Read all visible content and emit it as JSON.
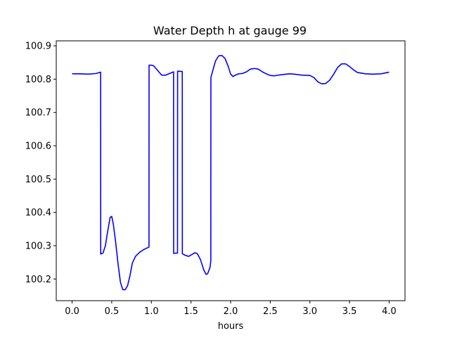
{
  "chart_data": {
    "type": "line",
    "title": "Water Depth h at gauge 99",
    "xlabel": "hours",
    "ylabel": "",
    "xlim": [
      -0.2,
      4.2
    ],
    "ylim": [
      100.135,
      100.915
    ],
    "grid": false,
    "x_ticks": [
      0.0,
      0.5,
      1.0,
      1.5,
      2.0,
      2.5,
      3.0,
      3.5,
      4.0
    ],
    "x_tick_labels": [
      "0.0",
      "0.5",
      "1.0",
      "1.5",
      "2.0",
      "2.5",
      "3.0",
      "3.5",
      "4.0"
    ],
    "y_ticks": [
      100.2,
      100.3,
      100.4,
      100.5,
      100.6,
      100.7,
      100.8,
      100.9
    ],
    "y_tick_labels": [
      "100.2",
      "100.3",
      "100.4",
      "100.5",
      "100.6",
      "100.7",
      "100.8",
      "100.9"
    ],
    "series": [
      {
        "name": "",
        "color": "#0000ff",
        "points": [
          [
            0.0,
            100.816
          ],
          [
            0.1,
            100.816
          ],
          [
            0.2,
            100.815
          ],
          [
            0.3,
            100.817
          ],
          [
            0.36,
            100.821
          ],
          [
            0.361,
            100.275
          ],
          [
            0.39,
            100.278
          ],
          [
            0.42,
            100.3
          ],
          [
            0.45,
            100.345
          ],
          [
            0.48,
            100.385
          ],
          [
            0.5,
            100.388
          ],
          [
            0.52,
            100.365
          ],
          [
            0.55,
            100.31
          ],
          [
            0.58,
            100.245
          ],
          [
            0.61,
            100.19
          ],
          [
            0.64,
            100.168
          ],
          [
            0.67,
            100.168
          ],
          [
            0.7,
            100.18
          ],
          [
            0.73,
            100.21
          ],
          [
            0.76,
            100.248
          ],
          [
            0.8,
            100.268
          ],
          [
            0.85,
            100.28
          ],
          [
            0.9,
            100.288
          ],
          [
            0.97,
            100.296
          ],
          [
            0.971,
            100.842
          ],
          [
            1.0,
            100.842
          ],
          [
            1.03,
            100.84
          ],
          [
            1.08,
            100.826
          ],
          [
            1.13,
            100.812
          ],
          [
            1.18,
            100.812
          ],
          [
            1.23,
            100.817
          ],
          [
            1.28,
            100.822
          ],
          [
            1.281,
            100.277
          ],
          [
            1.33,
            100.278
          ],
          [
            1.331,
            100.824
          ],
          [
            1.39,
            100.823
          ],
          [
            1.391,
            100.276
          ],
          [
            1.42,
            100.272
          ],
          [
            1.47,
            100.268
          ],
          [
            1.5,
            100.272
          ],
          [
            1.55,
            100.279
          ],
          [
            1.58,
            100.276
          ],
          [
            1.62,
            100.258
          ],
          [
            1.66,
            100.228
          ],
          [
            1.69,
            100.214
          ],
          [
            1.71,
            100.216
          ],
          [
            1.74,
            100.235
          ],
          [
            1.75,
            100.255
          ],
          [
            1.751,
            100.805
          ],
          [
            1.78,
            100.83
          ],
          [
            1.81,
            100.855
          ],
          [
            1.85,
            100.87
          ],
          [
            1.89,
            100.871
          ],
          [
            1.93,
            100.862
          ],
          [
            1.97,
            100.838
          ],
          [
            2.0,
            100.815
          ],
          [
            2.03,
            100.808
          ],
          [
            2.06,
            100.812
          ],
          [
            2.1,
            100.816
          ],
          [
            2.15,
            100.817
          ],
          [
            2.2,
            100.822
          ],
          [
            2.25,
            100.83
          ],
          [
            2.3,
            100.832
          ],
          [
            2.35,
            100.83
          ],
          [
            2.4,
            100.822
          ],
          [
            2.45,
            100.816
          ],
          [
            2.5,
            100.811
          ],
          [
            2.55,
            100.81
          ],
          [
            2.6,
            100.812
          ],
          [
            2.7,
            100.815
          ],
          [
            2.75,
            100.816
          ],
          [
            2.8,
            100.815
          ],
          [
            2.9,
            100.812
          ],
          [
            3.0,
            100.811
          ],
          [
            3.05,
            100.805
          ],
          [
            3.1,
            100.792
          ],
          [
            3.15,
            100.786
          ],
          [
            3.2,
            100.787
          ],
          [
            3.25,
            100.797
          ],
          [
            3.3,
            100.815
          ],
          [
            3.35,
            100.835
          ],
          [
            3.4,
            100.846
          ],
          [
            3.45,
            100.846
          ],
          [
            3.5,
            100.838
          ],
          [
            3.55,
            100.828
          ],
          [
            3.6,
            100.82
          ],
          [
            3.7,
            100.816
          ],
          [
            3.8,
            100.815
          ],
          [
            3.9,
            100.816
          ],
          [
            4.0,
            100.821
          ]
        ]
      }
    ]
  }
}
